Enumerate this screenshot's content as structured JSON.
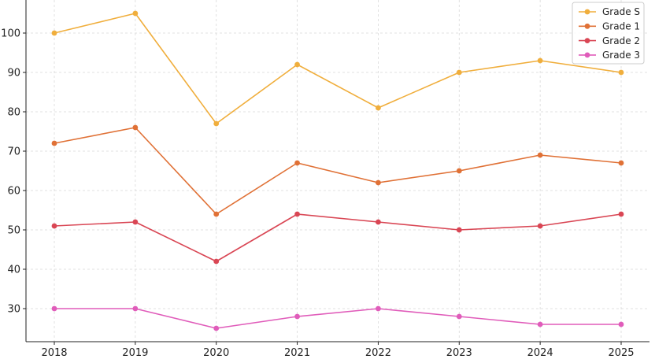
{
  "chart_data": {
    "type": "line",
    "categories": [
      "2018",
      "2019",
      "2020",
      "2021",
      "2022",
      "2023",
      "2024",
      "2025"
    ],
    "series": [
      {
        "name": "Grade S",
        "color": "#f0ae3c",
        "values": [
          100,
          105,
          77,
          92,
          81,
          90,
          93,
          90
        ]
      },
      {
        "name": "Grade 1",
        "color": "#e07136",
        "values": [
          72,
          76,
          54,
          67,
          62,
          65,
          69,
          67
        ]
      },
      {
        "name": "Grade 2",
        "color": "#d94654",
        "values": [
          51,
          52,
          42,
          54,
          52,
          50,
          51,
          54
        ]
      },
      {
        "name": "Grade 3",
        "color": "#e05cba",
        "values": [
          30,
          30,
          25,
          28,
          30,
          28,
          26,
          26
        ]
      }
    ],
    "yticks": [
      30,
      40,
      50,
      60,
      70,
      80,
      90,
      100
    ],
    "ylim": [
      21.6,
      108.4
    ],
    "title": "",
    "xlabel": "",
    "ylabel": "",
    "grid": true,
    "legend": "top-right"
  }
}
